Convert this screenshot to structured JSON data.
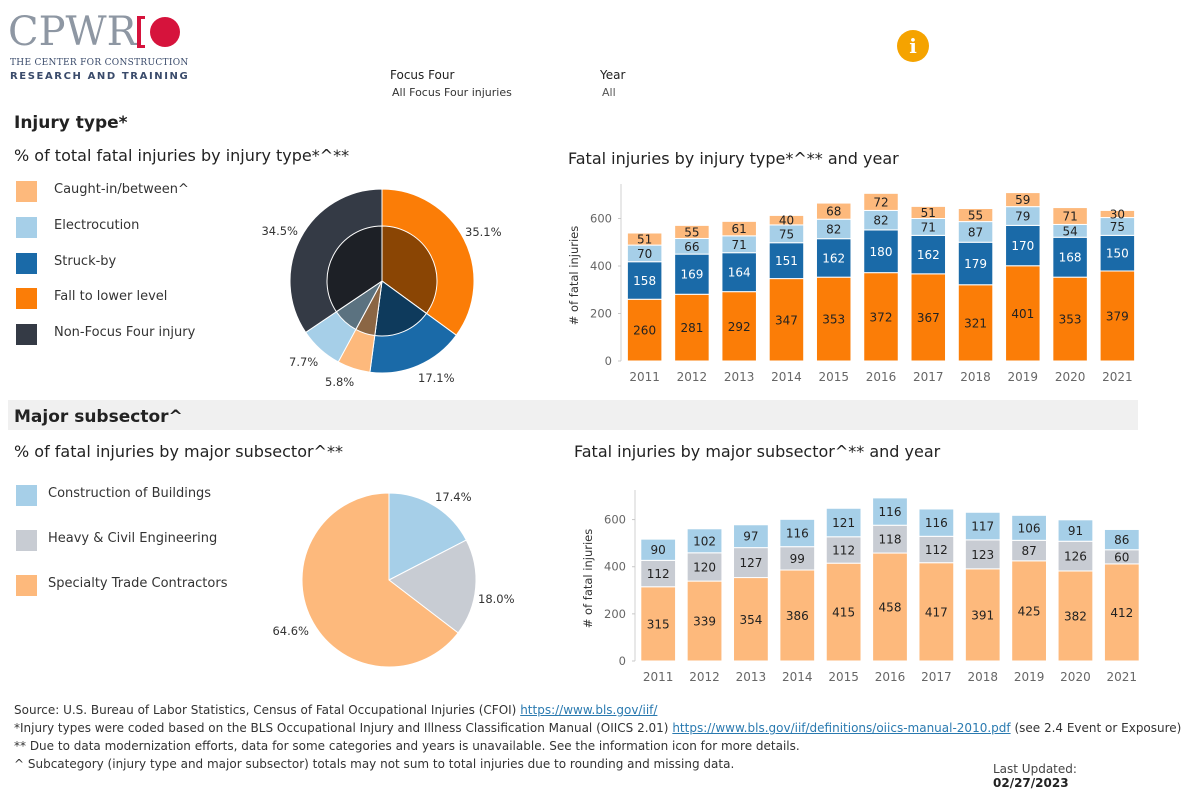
{
  "header": {
    "logo_text": "CPWR",
    "logo_sub1": "THE CENTER FOR CONSTRUCTION",
    "logo_sub2": "RESEARCH AND TRAINING",
    "filters": [
      {
        "label": "Focus Four",
        "value": "All Focus Four injuries"
      },
      {
        "label": "Year",
        "value": "All"
      }
    ],
    "info_icon": "info-icon"
  },
  "colors": {
    "caught": "#fdb97c",
    "electro": "#a6cfe8",
    "struck": "#1a6aa8",
    "fall": "#fb7d07",
    "nonfocus": "#343a45",
    "buildings": "#a6cfe8",
    "heavy": "#c8ccd3",
    "specialty": "#fdb97c",
    "info": "#f5a300"
  },
  "injury_section": {
    "title": "Injury type*",
    "pie_title": "% of total fatal injuries by injury type*^**",
    "bar_title": "Fatal injuries by injury type*^** and year",
    "legend": [
      {
        "label": "Caught-in/between^",
        "key": "caught"
      },
      {
        "label": "Electrocution",
        "key": "electro"
      },
      {
        "label": "Struck-by",
        "key": "struck"
      },
      {
        "label": "Fall to lower level",
        "key": "fall"
      },
      {
        "label": "Non-Focus Four injury",
        "key": "nonfocus"
      }
    ]
  },
  "subsector_section": {
    "title": "Major subsector^",
    "pie_title": "% of fatal injuries by major subsector^**",
    "bar_title": "Fatal injuries by major subsector^** and year",
    "legend": [
      {
        "label": "Construction of Buildings",
        "key": "buildings"
      },
      {
        "label": "Heavy & Civil Engineering",
        "key": "heavy"
      },
      {
        "label": "Specialty Trade Contractors",
        "key": "specialty"
      }
    ]
  },
  "footer": {
    "source_text": "Source: U.S. Bureau of Labor Statistics, Census of Fatal Occupational Injuries (CFOI)",
    "source_link": "https://www.bls.gov/iif/",
    "note1_text": "*Injury types were coded based on the BLS Occupational Injury and Illness Classification Manual (OIICS 2.01)",
    "note1_link": "https://www.bls.gov/iif/definitions/oiics-manual-2010.pdf",
    "note1_suffix": "(see 2.4 Event or Exposure)",
    "note2": "** Due to data modernization efforts, data for some categories and years is unavailable. See the information icon for more details.",
    "note3": "^ Subcategory (injury type and major subsector) totals may not sum to total injuries due to rounding and missing data.",
    "updated_label": "Last Updated:",
    "updated_date": "02/27/2023"
  },
  "chart_data": [
    {
      "type": "pie",
      "id": "injury-pie",
      "title": "% of total fatal injuries by injury type*^**",
      "slices": [
        {
          "label": "Fall to lower level",
          "key": "fall",
          "value": 35.1,
          "text": "35.1%"
        },
        {
          "label": "Struck-by",
          "key": "struck",
          "value": 17.1,
          "text": "17.1%"
        },
        {
          "label": "Caught-in/between^",
          "key": "caught",
          "value": 5.8,
          "text": "5.8%"
        },
        {
          "label": "Electrocution",
          "key": "electro",
          "value": 7.7,
          "text": "7.7%"
        },
        {
          "label": "Non-Focus Four injury",
          "key": "nonfocus",
          "value": 34.5,
          "text": "34.5%"
        }
      ]
    },
    {
      "type": "bar",
      "stacked": true,
      "id": "injury-bar",
      "title": "Fatal injuries by injury type*^** and year",
      "ylabel": "# of fatal injuries",
      "ylim": [
        0,
        720
      ],
      "yticks": [
        0,
        200,
        400,
        600
      ],
      "categories": [
        "2011",
        "2012",
        "2013",
        "2014",
        "2015",
        "2016",
        "2017",
        "2018",
        "2019",
        "2020",
        "2021"
      ],
      "series": [
        {
          "name": "Fall to lower level",
          "key": "fall",
          "values": [
            260,
            281,
            292,
            347,
            353,
            372,
            367,
            321,
            401,
            353,
            379
          ]
        },
        {
          "name": "Struck-by",
          "key": "struck",
          "values": [
            158,
            169,
            164,
            151,
            162,
            180,
            162,
            179,
            170,
            168,
            150
          ]
        },
        {
          "name": "Electrocution",
          "key": "electro",
          "values": [
            70,
            66,
            71,
            75,
            82,
            82,
            71,
            87,
            79,
            54,
            75
          ]
        },
        {
          "name": "Caught-in/between^",
          "key": "caught",
          "values": [
            51,
            55,
            61,
            40,
            68,
            72,
            51,
            55,
            59,
            71,
            30
          ]
        }
      ]
    },
    {
      "type": "pie",
      "id": "subsector-pie",
      "title": "% of fatal injuries by major subsector^**",
      "slices": [
        {
          "label": "Construction of Buildings",
          "key": "buildings",
          "value": 17.4,
          "text": "17.4%"
        },
        {
          "label": "Heavy & Civil Engineering",
          "key": "heavy",
          "value": 18.0,
          "text": "18.0%"
        },
        {
          "label": "Specialty Trade Contractors",
          "key": "specialty",
          "value": 64.6,
          "text": "64.6%"
        }
      ]
    },
    {
      "type": "bar",
      "stacked": true,
      "id": "subsector-bar",
      "title": "Fatal injuries by major subsector^** and year",
      "ylabel": "# of fatal injuries",
      "ylim": [
        0,
        700
      ],
      "yticks": [
        0,
        200,
        400,
        600
      ],
      "categories": [
        "2011",
        "2012",
        "2013",
        "2014",
        "2015",
        "2016",
        "2017",
        "2018",
        "2019",
        "2020",
        "2021"
      ],
      "series": [
        {
          "name": "Specialty Trade Contractors",
          "key": "specialty",
          "values": [
            315,
            339,
            354,
            386,
            415,
            458,
            417,
            391,
            425,
            382,
            412
          ]
        },
        {
          "name": "Heavy & Civil Engineering",
          "key": "heavy",
          "values": [
            112,
            120,
            127,
            99,
            112,
            118,
            112,
            123,
            87,
            126,
            60
          ]
        },
        {
          "name": "Construction of Buildings",
          "key": "buildings",
          "values": [
            90,
            102,
            97,
            116,
            121,
            116,
            116,
            117,
            106,
            91,
            86
          ]
        }
      ]
    }
  ]
}
